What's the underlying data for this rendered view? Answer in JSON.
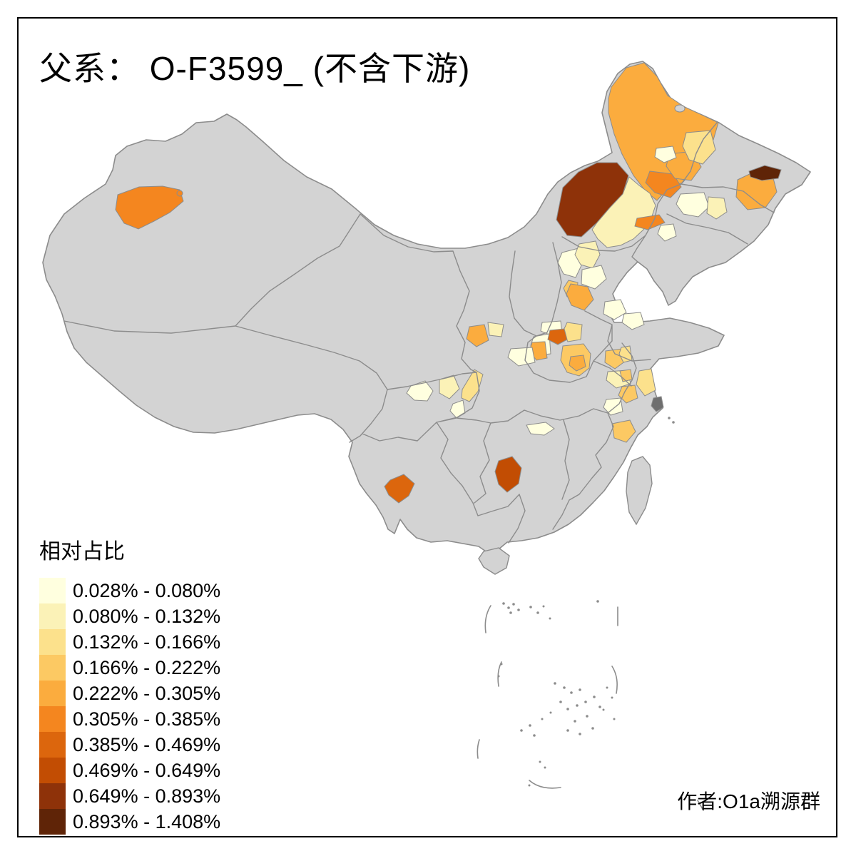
{
  "title": "父系： O-F3599_ (不含下游)",
  "attribution": "作者:O1a溯源群",
  "legend": {
    "title": "相对占比",
    "items": [
      {
        "label": "0.028% - 0.080%",
        "color": "#FFFFDF"
      },
      {
        "label": "0.080% - 0.132%",
        "color": "#FBF2B7"
      },
      {
        "label": "0.132% - 0.166%",
        "color": "#FCE18C"
      },
      {
        "label": "0.166% - 0.222%",
        "color": "#FCC963"
      },
      {
        "label": "0.222% - 0.305%",
        "color": "#FBAC3E"
      },
      {
        "label": "0.305% - 0.385%",
        "color": "#F4861F"
      },
      {
        "label": "0.385% - 0.469%",
        "color": "#DC660D"
      },
      {
        "label": "0.469% - 0.649%",
        "color": "#C24D03"
      },
      {
        "label": "0.649% - 0.893%",
        "color": "#8E3209"
      },
      {
        "label": "0.893% - 1.408%",
        "color": "#5F2407"
      }
    ]
  },
  "map": {
    "land_color": "#D3D3D3",
    "border_color": "#8C8C8C",
    "sea_color": "#FFFFFF",
    "city_marker_color": "#6F6F6F",
    "frame_color": "#000000"
  },
  "chart_data": {
    "type": "choropleth",
    "title": "父系： O-F3599_ (不含下游)",
    "legend_title": "相对占比",
    "unit": "%",
    "value_range": [
      0.028,
      1.408
    ],
    "bins": [
      {
        "min": 0.028,
        "max": 0.08,
        "color": "#FFFFDF"
      },
      {
        "min": 0.08,
        "max": 0.132,
        "color": "#FBF2B7"
      },
      {
        "min": 0.132,
        "max": 0.166,
        "color": "#FCE18C"
      },
      {
        "min": 0.166,
        "max": 0.222,
        "color": "#FCC963"
      },
      {
        "min": 0.222,
        "max": 0.305,
        "color": "#FBAC3E"
      },
      {
        "min": 0.305,
        "max": 0.385,
        "color": "#F4861F"
      },
      {
        "min": 0.385,
        "max": 0.469,
        "color": "#DC660D"
      },
      {
        "min": 0.469,
        "max": 0.649,
        "color": "#C24D03"
      },
      {
        "min": 0.649,
        "max": 0.893,
        "color": "#8E3209"
      },
      {
        "min": 0.893,
        "max": 1.408,
        "color": "#5F2407"
      }
    ],
    "no_data_color": "#D3D3D3",
    "attribution": "作者:O1a溯源群"
  }
}
